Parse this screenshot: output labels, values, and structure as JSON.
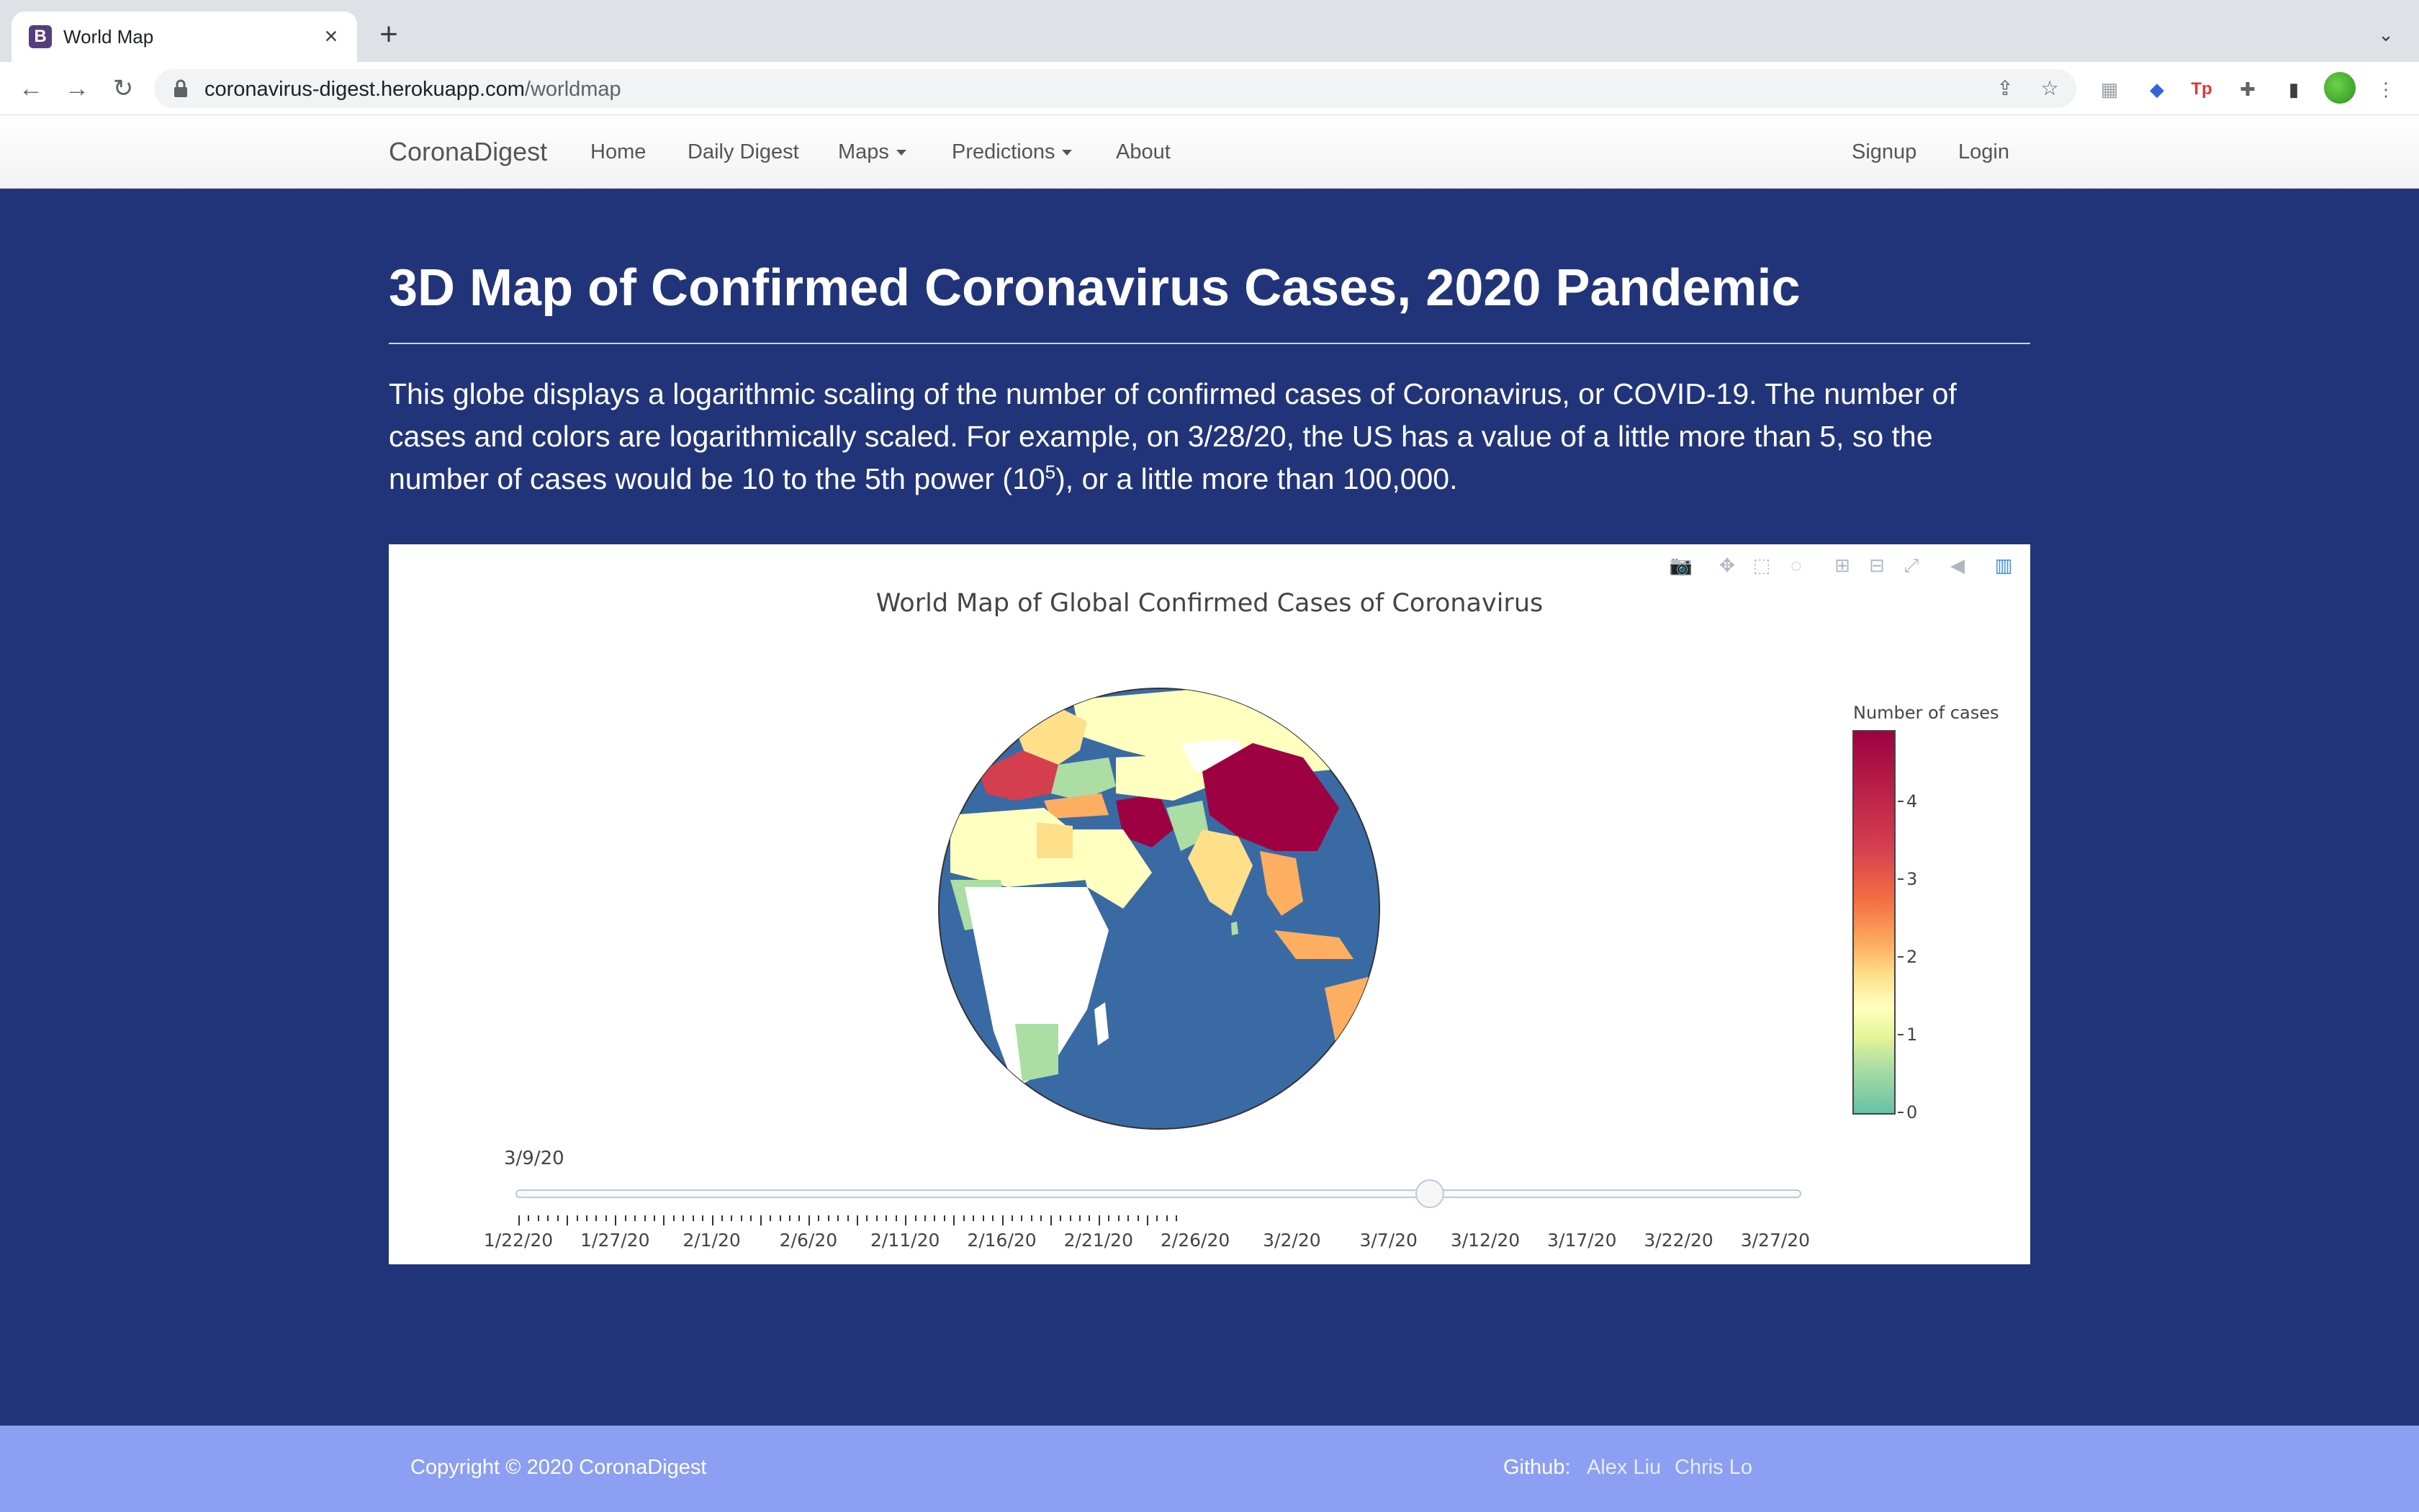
{
  "browser": {
    "tab_title": "World Map",
    "tab_favicon": "B",
    "url_host": "coronavirus-digest.herokuapp.com",
    "url_path": "/worldmap"
  },
  "navbar": {
    "brand": "CoronaDigest",
    "links": [
      "Home",
      "Daily Digest",
      "Maps",
      "Predictions",
      "About"
    ],
    "right_links": [
      "Signup",
      "Login"
    ]
  },
  "page": {
    "title": "3D Map of Confirmed Coronavirus Cases, 2020 Pandemic",
    "intro_before_sup": "This globe displays a logarithmic scaling of the number of confirmed cases of Coronavirus, or COVID-19. The number of cases and colors are logarithmically scaled. For example, on 3/28/20, the US has a value of a little more than 5, so the number of cases would be 10 to the 5th power (10",
    "intro_sup": "5",
    "intro_after_sup": "), or a little more than 100,000."
  },
  "chart": {
    "title": "World Map of Global Confirmed Cases of Coronavirus",
    "colorbar_title": "Number of cases",
    "colorbar_ticks": [
      "4",
      "3",
      "2",
      "1",
      "0"
    ],
    "slider_current": "3/9/20",
    "slider_tick_labels": [
      "1/22/20",
      "1/27/20",
      "2/1/20",
      "2/6/20",
      "2/11/20",
      "2/16/20",
      "2/21/20",
      "2/26/20",
      "3/2/20",
      "3/7/20",
      "3/12/20",
      "3/17/20",
      "3/22/20",
      "3/27/20"
    ],
    "ocean_color": "#3a6aa3",
    "high_color": "#9e0142"
  },
  "footer": {
    "copyright": "Copyright © 2020 CoronaDigest",
    "github_label": "Github:",
    "github_links": [
      "Alex Liu",
      "Chris Lo"
    ]
  }
}
